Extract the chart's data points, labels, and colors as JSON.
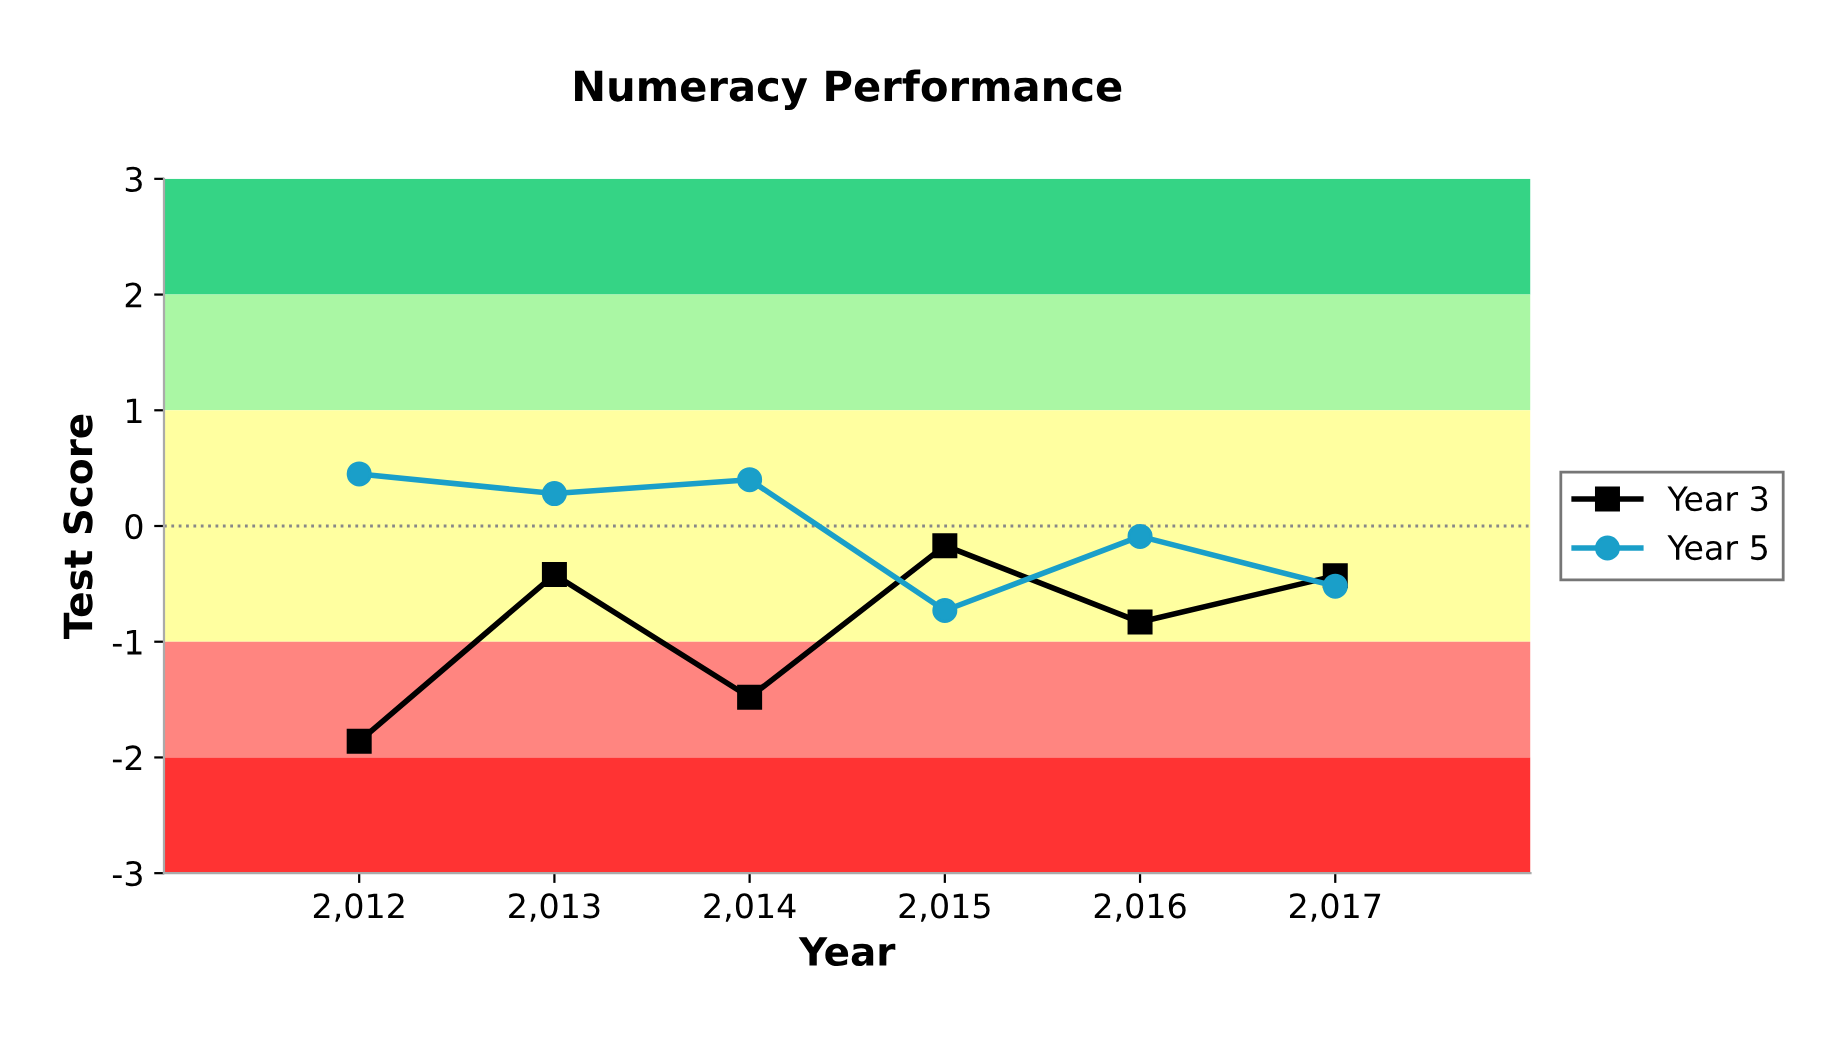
{
  "chart_data": {
    "type": "line",
    "title": "Numeracy Performance",
    "xlabel": "Year",
    "ylabel": "Test Score",
    "categories": [
      "2,012",
      "2,013",
      "2,014",
      "2,015",
      "2,016",
      "2,017"
    ],
    "series": [
      {
        "name": "Year 3",
        "color": "#000000",
        "marker": "square",
        "values": [
          -1.86,
          -0.42,
          -1.48,
          -0.17,
          -0.83,
          -0.43
        ]
      },
      {
        "name": "Year 5",
        "color": "#1a9fc9",
        "marker": "circle",
        "values": [
          0.45,
          0.28,
          0.4,
          -0.73,
          -0.09,
          -0.52
        ]
      }
    ],
    "ylim": [
      -3,
      3
    ],
    "yticks": [
      -3,
      -2,
      -1,
      0,
      1,
      2,
      3
    ],
    "grid": false,
    "legend": "right",
    "line_style": "solid",
    "bands": [
      {
        "axis": "y",
        "from": 2,
        "to": 3,
        "color": "#35d485"
      },
      {
        "axis": "y",
        "from": 1,
        "to": 2,
        "color": "#aaf7a4"
      },
      {
        "axis": "y",
        "from": -1,
        "to": 1,
        "color": "#ffffa0"
      },
      {
        "axis": "y",
        "from": -2,
        "to": -1,
        "color": "#ff8580"
      },
      {
        "axis": "y",
        "from": -3,
        "to": -2,
        "color": "#ff3333"
      }
    ],
    "ref_lines": [
      {
        "axis": "y",
        "value": 0,
        "color": "#888888",
        "line_style": "dotted"
      }
    ]
  }
}
